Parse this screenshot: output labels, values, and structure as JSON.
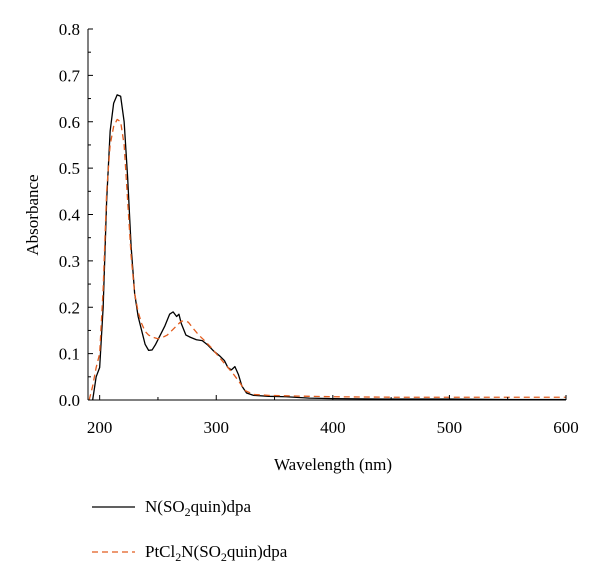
{
  "chart_data": {
    "type": "line",
    "title": "",
    "xlabel": "Wavelength (nm)",
    "ylabel": "Absorbance",
    "xlim": [
      190,
      600
    ],
    "ylim": [
      0,
      0.8
    ],
    "x_ticks": [
      200,
      300,
      400,
      500,
      600
    ],
    "y_ticks": [
      0,
      0.1,
      0.2,
      0.3,
      0.4,
      0.5,
      0.6,
      0.7,
      0.8
    ],
    "grid": false,
    "legend_position": "bottom-left",
    "series": [
      {
        "name": "N(SO2quin)dpa",
        "legend_parts": [
          "N(SO",
          "2",
          "quin)dpa"
        ],
        "color": "#000000",
        "style": "solid",
        "points": [
          [
            194,
            0.0
          ],
          [
            197,
            0.05
          ],
          [
            200,
            0.07
          ],
          [
            203,
            0.2
          ],
          [
            206,
            0.43
          ],
          [
            209,
            0.58
          ],
          [
            212,
            0.64
          ],
          [
            215,
            0.658
          ],
          [
            218,
            0.655
          ],
          [
            221,
            0.6
          ],
          [
            224,
            0.48
          ],
          [
            227,
            0.33
          ],
          [
            230,
            0.23
          ],
          [
            233,
            0.18
          ],
          [
            236,
            0.15
          ],
          [
            239,
            0.12
          ],
          [
            242,
            0.107
          ],
          [
            245,
            0.108
          ],
          [
            248,
            0.12
          ],
          [
            252,
            0.14
          ],
          [
            256,
            0.16
          ],
          [
            260,
            0.185
          ],
          [
            263,
            0.19
          ],
          [
            266,
            0.18
          ],
          [
            268,
            0.185
          ],
          [
            270,
            0.165
          ],
          [
            274,
            0.14
          ],
          [
            278,
            0.135
          ],
          [
            283,
            0.13
          ],
          [
            288,
            0.128
          ],
          [
            293,
            0.118
          ],
          [
            298,
            0.105
          ],
          [
            303,
            0.095
          ],
          [
            307,
            0.085
          ],
          [
            310,
            0.07
          ],
          [
            313,
            0.065
          ],
          [
            316,
            0.072
          ],
          [
            319,
            0.055
          ],
          [
            322,
            0.03
          ],
          [
            326,
            0.015
          ],
          [
            332,
            0.01
          ],
          [
            345,
            0.008
          ],
          [
            360,
            0.007
          ],
          [
            380,
            0.004
          ],
          [
            400,
            0.003
          ],
          [
            450,
            0.002
          ],
          [
            500,
            0.002
          ],
          [
            550,
            0.001
          ],
          [
            600,
            0.001
          ]
        ]
      },
      {
        "name": "PtCl2N(SO2quin)dpa",
        "legend_parts": [
          "PtCl",
          "2",
          "N(SO",
          "2",
          "quin)dpa"
        ],
        "color": "#e25c1e",
        "style": "dashed",
        "points": [
          [
            191,
            0.0
          ],
          [
            194,
            0.03
          ],
          [
            197,
            0.07
          ],
          [
            200,
            0.1
          ],
          [
            203,
            0.24
          ],
          [
            206,
            0.45
          ],
          [
            209,
            0.55
          ],
          [
            212,
            0.59
          ],
          [
            215,
            0.605
          ],
          [
            218,
            0.6
          ],
          [
            221,
            0.55
          ],
          [
            224,
            0.43
          ],
          [
            227,
            0.31
          ],
          [
            230,
            0.23
          ],
          [
            233,
            0.19
          ],
          [
            236,
            0.165
          ],
          [
            239,
            0.148
          ],
          [
            242,
            0.14
          ],
          [
            246,
            0.135
          ],
          [
            250,
            0.132
          ],
          [
            254,
            0.135
          ],
          [
            258,
            0.14
          ],
          [
            262,
            0.15
          ],
          [
            266,
            0.16
          ],
          [
            270,
            0.17
          ],
          [
            273,
            0.17
          ],
          [
            276,
            0.168
          ],
          [
            280,
            0.155
          ],
          [
            285,
            0.14
          ],
          [
            290,
            0.128
          ],
          [
            295,
            0.115
          ],
          [
            300,
            0.1
          ],
          [
            305,
            0.085
          ],
          [
            310,
            0.07
          ],
          [
            315,
            0.055
          ],
          [
            320,
            0.038
          ],
          [
            325,
            0.02
          ],
          [
            332,
            0.012
          ],
          [
            345,
            0.01
          ],
          [
            360,
            0.009
          ],
          [
            380,
            0.008
          ],
          [
            400,
            0.007
          ],
          [
            450,
            0.006
          ],
          [
            500,
            0.006
          ],
          [
            550,
            0.006
          ],
          [
            600,
            0.006
          ]
        ]
      }
    ]
  }
}
